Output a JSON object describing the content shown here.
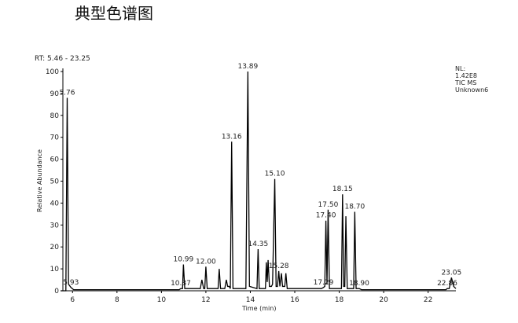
{
  "page_title": "典型色谱图",
  "chart_data": {
    "type": "line",
    "range_label": "RT: 5.46 - 23.25",
    "info": [
      "NL:",
      "1.42E8",
      "TIC  MS",
      "Unknown6"
    ],
    "x_label": "Time (min)",
    "y_label": "Relative Abundance",
    "color": "#000000",
    "xlim": [
      5.46,
      23.25
    ],
    "ylim": [
      0,
      100
    ],
    "xticks": [
      6,
      8,
      10,
      12,
      14,
      16,
      18,
      20,
      22
    ],
    "yticks": [
      0,
      10,
      20,
      30,
      40,
      50,
      60,
      70,
      80,
      90,
      100
    ],
    "x": [
      5.46,
      5.7,
      5.76,
      5.82,
      5.93,
      6.05,
      10.8,
      10.87,
      10.95,
      10.99,
      11.05,
      11.75,
      11.82,
      11.9,
      11.95,
      12.0,
      12.06,
      12.55,
      12.6,
      12.66,
      12.85,
      12.92,
      12.98,
      13.05,
      13.1,
      13.16,
      13.22,
      13.8,
      13.89,
      13.96,
      14.3,
      14.35,
      14.4,
      14.68,
      14.72,
      14.76,
      14.8,
      14.86,
      14.95,
      15.0,
      15.1,
      15.16,
      15.22,
      15.28,
      15.33,
      15.4,
      15.45,
      15.55,
      15.6,
      15.66,
      17.2,
      17.29,
      17.35,
      17.4,
      17.45,
      17.5,
      17.56,
      18.1,
      18.15,
      18.2,
      18.25,
      18.3,
      18.36,
      18.65,
      18.7,
      18.76,
      18.9,
      19.0,
      22.8,
      22.86,
      22.95,
      23.05,
      23.15,
      23.25
    ],
    "values": [
      0,
      0,
      88,
      3,
      1.5,
      0.5,
      0.5,
      1,
      1,
      12,
      1,
      1,
      5,
      1,
      1,
      11,
      1,
      1,
      10,
      1,
      1,
      5,
      2,
      2,
      1,
      68,
      1,
      1,
      100,
      2,
      1,
      19,
      1,
      1,
      13,
      4,
      14,
      2,
      2,
      3,
      51,
      2,
      2,
      9,
      2,
      8,
      2,
      2,
      8,
      1,
      1,
      1.5,
      2,
      32,
      3,
      37,
      1,
      1,
      44,
      2,
      2,
      34,
      1,
      1,
      36,
      1,
      1,
      0.5,
      0.5,
      1,
      1,
      6,
      2,
      1
    ],
    "peak_labels": [
      5.76,
      5.93,
      10.87,
      10.99,
      {
        "value": 12,
        "label": "12.00"
      },
      13.16,
      13.89,
      14.35,
      {
        "value": 15.1,
        "label": "15.10"
      },
      15.28,
      17.29,
      {
        "value": 17.4,
        "label": "17.40"
      },
      {
        "value": 17.5,
        "label": "17.50"
      },
      18.15,
      {
        "value": 18.7,
        "label": "18.70"
      },
      {
        "value": 18.9,
        "label": "18.90"
      },
      22.86,
      23.05
    ]
  }
}
